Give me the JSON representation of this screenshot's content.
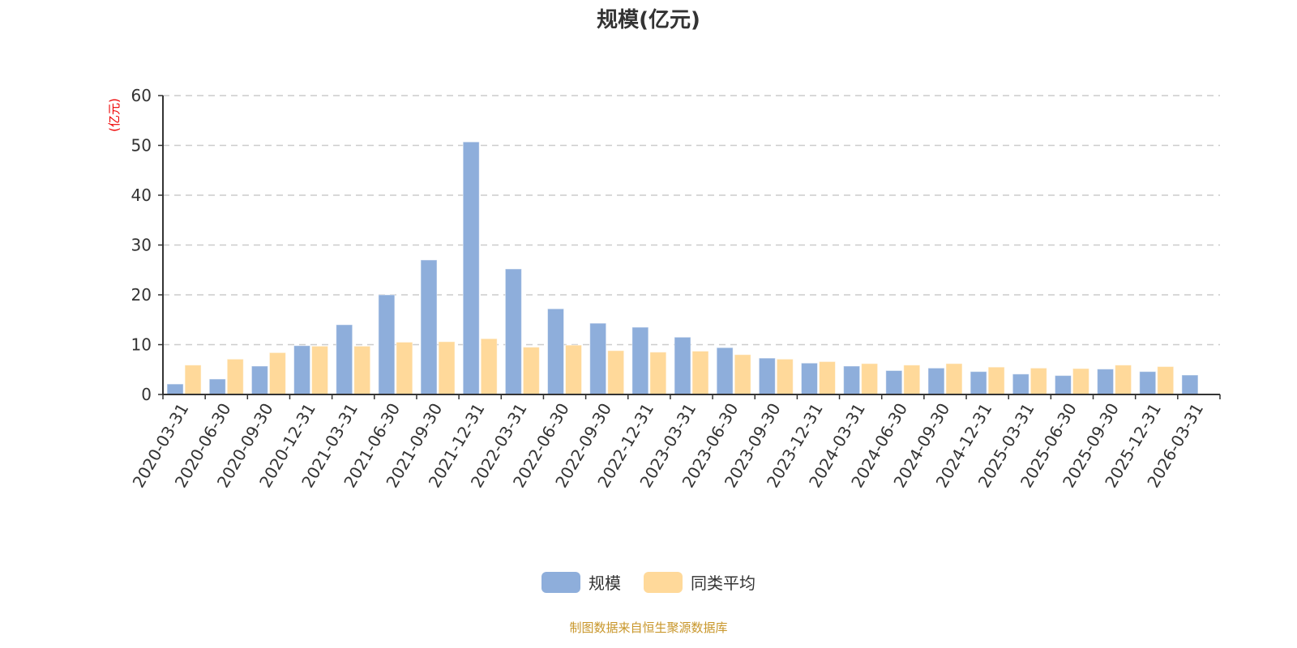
{
  "chart_data": {
    "type": "bar",
    "title": "规模(亿元)",
    "ylabel": "(亿元)",
    "xlabel": "",
    "ylim": [
      0,
      60
    ],
    "yticks": [
      0,
      10,
      20,
      30,
      40,
      50,
      60
    ],
    "grid": true,
    "legend_position": "bottom",
    "categories": [
      "2020-03-31",
      "2020-06-30",
      "2020-09-30",
      "2020-12-31",
      "2021-03-31",
      "2021-06-30",
      "2021-09-30",
      "2021-12-31",
      "2022-03-31",
      "2022-06-30",
      "2022-09-30",
      "2022-12-31",
      "2023-03-31",
      "2023-06-30",
      "2023-09-30",
      "2023-12-31",
      "2024-03-31",
      "2024-06-30",
      "2024-09-30",
      "2024-12-31",
      "2025-03-31",
      "2025-06-30",
      "2025-09-30",
      "2025-12-31",
      "2026-03-31"
    ],
    "series": [
      {
        "name": "规模",
        "color": "#8eaedb",
        "values": [
          2.1,
          3.1,
          5.7,
          9.8,
          14.0,
          20.0,
          27.0,
          50.7,
          25.2,
          17.2,
          14.3,
          13.5,
          11.5,
          9.4,
          7.3,
          6.3,
          5.7,
          4.8,
          5.3,
          4.6,
          4.1,
          3.8,
          5.1,
          4.6,
          3.9
        ]
      },
      {
        "name": "同类平均",
        "color": "#ffd99a",
        "values": [
          5.9,
          7.1,
          8.4,
          9.7,
          9.7,
          10.5,
          10.6,
          11.2,
          9.5,
          9.9,
          8.8,
          8.5,
          8.7,
          8.0,
          7.1,
          6.6,
          6.2,
          5.9,
          6.2,
          5.5,
          5.3,
          5.2,
          5.9,
          5.6,
          null
        ]
      }
    ]
  },
  "source": "制图数据来自恒生聚源数据库"
}
